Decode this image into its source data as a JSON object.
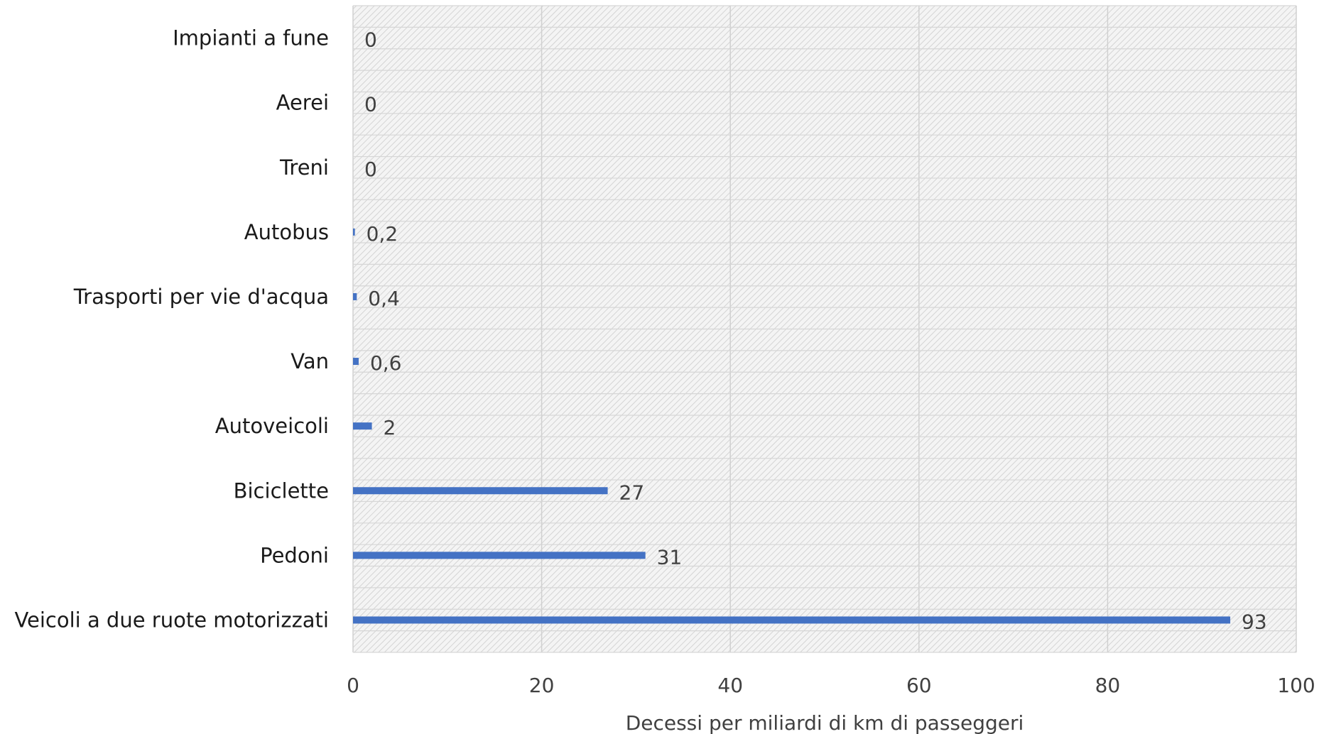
{
  "chart_data": {
    "type": "bar",
    "orientation": "horizontal",
    "categories": [
      "Veicoli a due ruote motorizzati",
      "Pedoni",
      "Biciclette",
      "Autoveicoli",
      "Van",
      "Trasporti per vie d'acqua",
      "Autobus",
      "Treni",
      "Aerei",
      "Impianti a fune"
    ],
    "values": [
      93,
      31,
      27,
      2,
      0.6,
      0.4,
      0.2,
      0,
      0,
      0
    ],
    "data_labels": [
      "93",
      "31",
      "27",
      "2",
      "0,6",
      "0,4",
      "0,2",
      "0",
      "0",
      "0"
    ],
    "xlabel": "Decessi per miliardi di km di passeggeri",
    "ylabel": "",
    "xlim": [
      0,
      100
    ],
    "xticks": [
      0,
      20,
      40,
      60,
      80,
      100
    ],
    "grid": true,
    "bar_color": "#4472C4",
    "plot_background": "hatched light gray"
  }
}
